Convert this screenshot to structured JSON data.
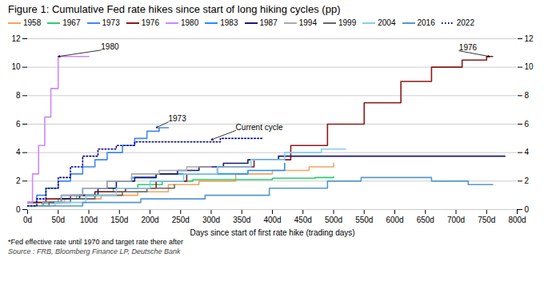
{
  "chart_data": {
    "type": "step",
    "title": "Figure 1: Cumulative Fed rate hikes since start of long hiking cycles (pp)",
    "xlabel": "Days since start of first rate hike (trading days)",
    "footnote": "*Fed effective rate until 1970 and target rate there after",
    "source": "Source : FRB, Bloomberg Finance LP, Deutsche Bank",
    "xlim": [
      0,
      800
    ],
    "xticks": [
      {
        "value": 0,
        "label": "0d"
      },
      {
        "value": 50,
        "label": "50d"
      },
      {
        "value": 100,
        "label": "100d"
      },
      {
        "value": 150,
        "label": "150d"
      },
      {
        "value": 200,
        "label": "200d"
      },
      {
        "value": 250,
        "label": "250d"
      },
      {
        "value": 300,
        "label": "300d"
      },
      {
        "value": 350,
        "label": "350d"
      },
      {
        "value": 400,
        "label": "400d"
      },
      {
        "value": 450,
        "label": "450d"
      },
      {
        "value": 500,
        "label": "500d"
      },
      {
        "value": 550,
        "label": "550d"
      },
      {
        "value": 600,
        "label": "600d"
      },
      {
        "value": 650,
        "label": "650d"
      },
      {
        "value": 700,
        "label": "700d"
      },
      {
        "value": 750,
        "label": "750d"
      },
      {
        "value": 800,
        "label": "800d"
      }
    ],
    "ylim": [
      0,
      12
    ],
    "yticks": [
      0,
      2,
      4,
      6,
      8,
      10,
      12
    ],
    "y2lim": [
      0,
      12
    ],
    "y2ticks": [
      0,
      2,
      4,
      6,
      8,
      10,
      12
    ],
    "grid": true,
    "legend": "top",
    "series": [
      {
        "name": "1958",
        "color": "#F4A460",
        "line_style": "solid",
        "x": [
          0,
          60,
          120,
          180,
          230,
          280,
          340,
          400,
          460,
          500
        ],
        "values": [
          0.5,
          0.75,
          1.0,
          1.25,
          1.75,
          2.0,
          2.5,
          2.75,
          3.0,
          3.25
        ]
      },
      {
        "name": "1967",
        "color": "#2ECC71",
        "line_style": "solid",
        "x": [
          0,
          25,
          50,
          80,
          110,
          140,
          180,
          220,
          270,
          340,
          400,
          470,
          500
        ],
        "values": [
          0.25,
          0.5,
          0.75,
          1.0,
          1.25,
          1.5,
          1.75,
          2.0,
          2.1,
          2.1,
          2.2,
          2.25,
          2.3
        ]
      },
      {
        "name": "1973",
        "color": "#4488EE",
        "line_style": "solid",
        "x": [
          0,
          15,
          30,
          50,
          70,
          90,
          110,
          130,
          155,
          175,
          195,
          215,
          230
        ],
        "values": [
          0.5,
          1.0,
          1.5,
          2.0,
          2.5,
          3.0,
          3.5,
          4.0,
          4.5,
          5.0,
          5.5,
          5.75,
          5.75
        ]
      },
      {
        "name": "1976",
        "color": "#8B1A1A",
        "line_style": "solid",
        "x": [
          0,
          30,
          70,
          110,
          160,
          210,
          260,
          310,
          370,
          430,
          490,
          550,
          610,
          660,
          710,
          750,
          760
        ],
        "values": [
          0.5,
          0.75,
          1.0,
          1.25,
          1.5,
          2.0,
          2.5,
          3.0,
          3.5,
          4.5,
          6.0,
          7.5,
          9.0,
          10.0,
          10.5,
          10.75,
          10.75
        ]
      },
      {
        "name": "1980",
        "color": "#CC88FF",
        "line_style": "solid",
        "x": [
          0,
          8,
          18,
          28,
          38,
          50,
          65,
          80,
          100
        ],
        "values": [
          0.5,
          2.5,
          4.5,
          6.5,
          8.5,
          10.75,
          10.75,
          10.75,
          10.75
        ]
      },
      {
        "name": "1983",
        "color": "#1E90FF",
        "line_style": "solid",
        "x": [
          0,
          25,
          55,
          90,
          130,
          170,
          210,
          255,
          300,
          360,
          420
        ],
        "values": [
          0.25,
          0.5,
          1.0,
          1.5,
          2.0,
          2.25,
          2.5,
          2.5,
          2.5,
          2.75,
          3.25
        ]
      },
      {
        "name": "1987",
        "color": "#191970",
        "line_style": "solid",
        "x": [
          0,
          25,
          55,
          85,
          115,
          145,
          175,
          210,
          245,
          280,
          320,
          360,
          410,
          470,
          530,
          600,
          660,
          730,
          780
        ],
        "values": [
          0.25,
          0.5,
          0.75,
          1.0,
          1.5,
          2.0,
          2.25,
          2.5,
          2.75,
          3.0,
          3.25,
          3.5,
          3.75,
          3.75,
          3.75,
          3.75,
          3.75,
          3.75,
          3.75
        ]
      },
      {
        "name": "1994",
        "color": "#AAAAAA",
        "line_style": "solid",
        "x": [
          0,
          25,
          55,
          90,
          130,
          170,
          215,
          260,
          300
        ],
        "values": [
          0.25,
          0.5,
          1.0,
          1.5,
          2.0,
          2.5,
          2.75,
          3.0,
          3.0
        ]
      },
      {
        "name": "1999",
        "color": "#666666",
        "line_style": "solid",
        "x": [
          0,
          35,
          70,
          110,
          155,
          195,
          240
        ],
        "values": [
          0.25,
          0.5,
          0.75,
          1.0,
          1.25,
          1.5,
          1.75
        ]
      },
      {
        "name": "2004",
        "color": "#87CEEB",
        "line_style": "solid",
        "x": [
          0,
          45,
          95,
          145,
          200,
          255,
          310,
          365,
          420,
          480,
          520
        ],
        "values": [
          0.25,
          0.5,
          1.0,
          1.5,
          2.0,
          2.5,
          3.0,
          3.5,
          4.0,
          4.25,
          4.25
        ]
      },
      {
        "name": "2016",
        "color": "#5599CC",
        "line_style": "solid",
        "x": [
          0,
          90,
          185,
          290,
          395,
          490,
          545,
          600,
          660,
          720,
          760
        ],
        "values": [
          0.25,
          0.5,
          0.75,
          1.0,
          1.5,
          2.0,
          2.25,
          2.25,
          2.0,
          1.75,
          1.75
        ]
      },
      {
        "name": "2022",
        "color": "#00008B",
        "line_style": "dotted",
        "x": [
          0,
          15,
          30,
          50,
          70,
          90,
          115,
          145,
          175,
          210,
          245,
          280,
          315,
          350,
          385
        ],
        "values": [
          0.25,
          0.75,
          1.5,
          2.25,
          3.0,
          3.75,
          4.25,
          4.5,
          4.75,
          4.75,
          4.75,
          4.75,
          5.0,
          5.0,
          5.0
        ]
      }
    ],
    "annotations": [
      {
        "text": "1980",
        "x": 50,
        "y": 10.75,
        "text_x": 120,
        "text_y": 11.2
      },
      {
        "text": "1973",
        "x": 210,
        "y": 5.75,
        "text_x": 230,
        "text_y": 6.15
      },
      {
        "text": "Current cycle",
        "x": 300,
        "y": 4.9,
        "text_x": 340,
        "text_y": 5.55
      },
      {
        "text": "1976",
        "x": 755,
        "y": 10.75,
        "text_x": 705,
        "text_y": 11.15
      }
    ]
  }
}
